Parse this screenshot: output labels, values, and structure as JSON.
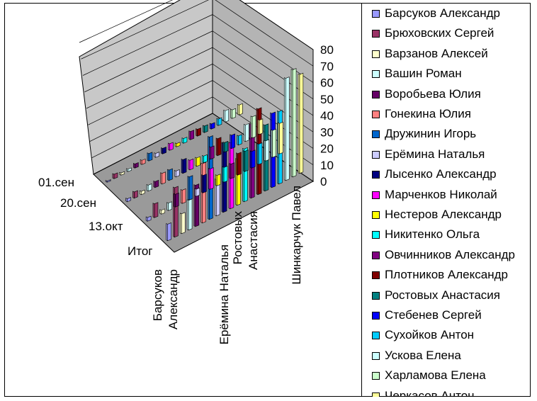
{
  "chart_data": {
    "type": "bar3d",
    "z_ticks": [
      "0",
      "10",
      "20",
      "30",
      "40",
      "50",
      "60",
      "70",
      "80"
    ],
    "zlim": [
      0,
      80
    ],
    "date_labels": [
      "01.сен",
      "20.сен",
      "13.окт",
      "Итог"
    ],
    "person_labels": [
      [
        "Барсуков",
        "Александр"
      ],
      [
        "Ерёмина Наталья"
      ],
      [
        "Ростовых",
        "Анастасия"
      ],
      [
        "Шинкарчук Павел"
      ]
    ],
    "legend_placement": "right",
    "series": [
      {
        "name": "Барсуков Александр",
        "color": "#9999FF"
      },
      {
        "name": "Брюховских Сергей",
        "color": "#993366"
      },
      {
        "name": "Варзанов Алексей",
        "color": "#FFFFCC"
      },
      {
        "name": "Вашин Роман",
        "color": "#CCFFFF"
      },
      {
        "name": "Воробьева Юлия",
        "color": "#660066"
      },
      {
        "name": "Гонекина Юлия",
        "color": "#FF8080"
      },
      {
        "name": "Дружинин Игорь",
        "color": "#0066CC"
      },
      {
        "name": "Ерёмина Наталья",
        "color": "#CCCCFF"
      },
      {
        "name": "Лысенко Александр",
        "color": "#000080"
      },
      {
        "name": "Марченков Николай",
        "color": "#FF00FF"
      },
      {
        "name": "Нестеров Александр",
        "color": "#FFFF00"
      },
      {
        "name": "Никитенко Ольга",
        "color": "#00FFFF"
      },
      {
        "name": "Овчинников Александр",
        "color": "#800080"
      },
      {
        "name": "Плотников Александр",
        "color": "#800000"
      },
      {
        "name": "Ростовых Анастасия",
        "color": "#008080"
      },
      {
        "name": "Стебенев Сергей",
        "color": "#0000FF"
      },
      {
        "name": "Сухойков Антон",
        "color": "#00CCFF"
      },
      {
        "name": "Ускова Елена",
        "color": "#CCFFFF"
      },
      {
        "name": "Харламова Елена",
        "color": "#CCFFCC"
      },
      {
        "name": "Черкасов Антон",
        "color": "#FFFF99"
      }
    ],
    "row_scale": [
      0.1,
      0.18,
      0.28,
      0.62
    ],
    "base_values": [
      10,
      30,
      12,
      18,
      25,
      36,
      50,
      22,
      42,
      40,
      28,
      32,
      45,
      52,
      40,
      45,
      44,
      62,
      65,
      60
    ]
  }
}
